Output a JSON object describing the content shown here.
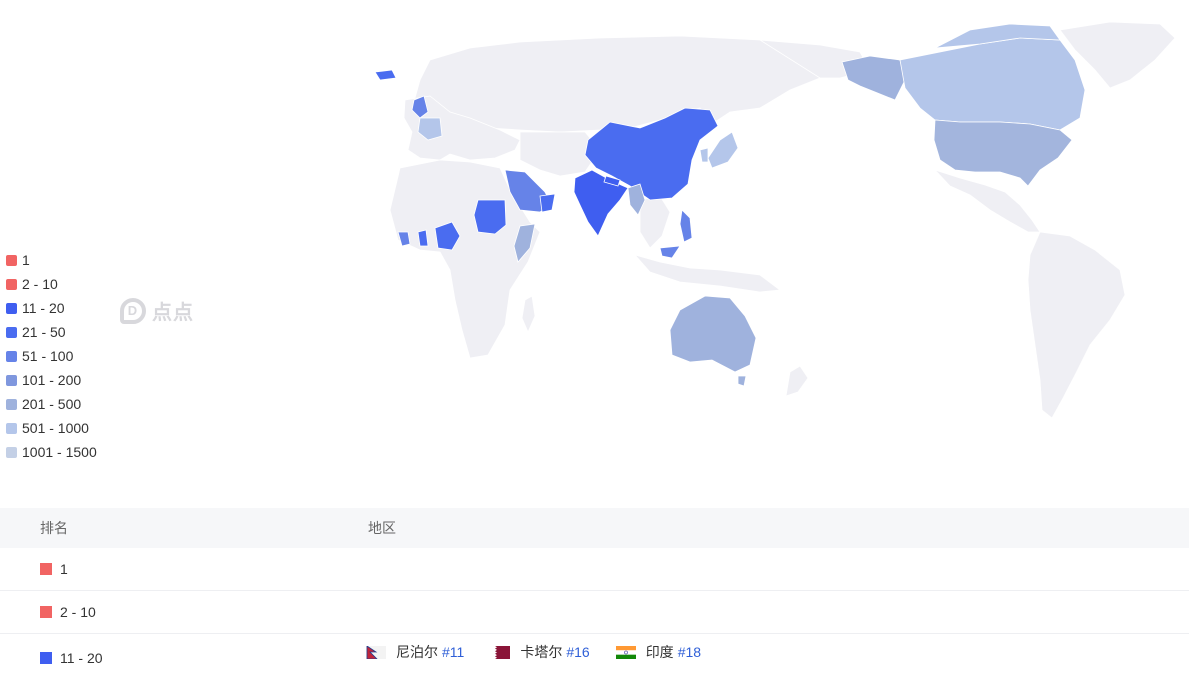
{
  "legend": [
    {
      "label": "1",
      "color": "#f16463"
    },
    {
      "label": "2 - 10",
      "color": "#f16463"
    },
    {
      "label": "11 - 20",
      "color": "#3f5ef0"
    },
    {
      "label": "21 - 50",
      "color": "#4a6cf0"
    },
    {
      "label": "51 - 100",
      "color": "#6683e8"
    },
    {
      "label": "101 - 200",
      "color": "#7f97de"
    },
    {
      "label": "201 - 500",
      "color": "#9fb2dd"
    },
    {
      "label": "501 - 1000",
      "color": "#b4c6ea"
    },
    {
      "label": "1001 - 1500",
      "color": "#c4d0e6"
    }
  ],
  "watermark": "点点",
  "table": {
    "header": {
      "rank": "排名",
      "region": "地区"
    },
    "rows": [
      {
        "rank": "1",
        "color": "#f16463",
        "regions": []
      },
      {
        "rank": "2 - 10",
        "color": "#f16463",
        "regions": []
      },
      {
        "rank": "11 - 20",
        "color": "#3f5ef0",
        "regions": [
          {
            "name": "尼泊尔",
            "rank": "#11",
            "flag": "nepal-flag-icon"
          },
          {
            "name": "卡塔尔",
            "rank": "#16",
            "flag": "qatar-flag-icon"
          },
          {
            "name": "印度",
            "rank": "#18",
            "flag": "india-flag-icon"
          }
        ]
      }
    ]
  },
  "colors": {
    "land": "#efeff4",
    "accent_blue": "#2f5fd7"
  }
}
